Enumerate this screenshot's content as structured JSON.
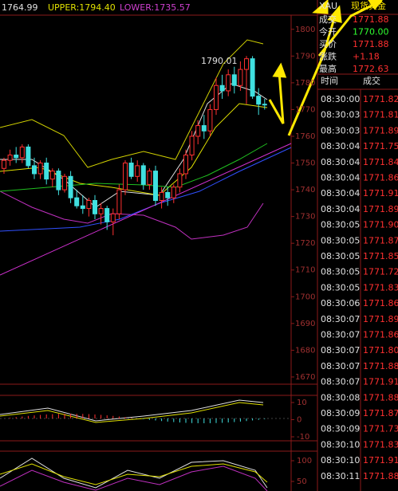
{
  "header": {
    "symbol": "XAU",
    "name": "现货黄金"
  },
  "indicator": {
    "mid": "1764.99",
    "upper": "UPPER:1794.40",
    "lower": "LOWER:1735.57"
  },
  "quote": [
    {
      "label": "成交",
      "value": "1771.88"
    },
    {
      "label": "今开",
      "value": "1770.00"
    },
    {
      "label": "买价",
      "value": "1771.88"
    },
    {
      "label": "涨跌",
      "value": "+1.18"
    },
    {
      "label": "最高",
      "value": "1772.63"
    }
  ],
  "trades": {
    "columns": [
      "时间",
      "成交"
    ],
    "rows": [
      [
        "08:30:00",
        "1771.82"
      ],
      [
        "08:30:03",
        "1771.81"
      ],
      [
        "08:30:03",
        "1771.89"
      ],
      [
        "08:30:04",
        "1771.75"
      ],
      [
        "08:30:04",
        "1771.84"
      ],
      [
        "08:30:04",
        "1771.86"
      ],
      [
        "08:30:04",
        "1771.91"
      ],
      [
        "08:30:04",
        "1771.89"
      ],
      [
        "08:30:05",
        "1771.90"
      ],
      [
        "08:30:05",
        "1771.87"
      ],
      [
        "08:30:05",
        "1771.85"
      ],
      [
        "08:30:05",
        "1771.72"
      ],
      [
        "08:30:05",
        "1771.83"
      ],
      [
        "08:30:06",
        "1771.86"
      ],
      [
        "08:30:07",
        "1771.89"
      ],
      [
        "08:30:07",
        "1771.86"
      ],
      [
        "08:30:07",
        "1771.80"
      ],
      [
        "08:30:07",
        "1771.88"
      ],
      [
        "08:30:07",
        "1771.91"
      ],
      [
        "08:30:08",
        "1771.88"
      ],
      [
        "08:30:09",
        "1771.87"
      ],
      [
        "08:30:09",
        "1771.73"
      ],
      [
        "08:30:10",
        "1771.83"
      ],
      [
        "08:30:10",
        "1771.91"
      ],
      [
        "08:30:11",
        "1771.88"
      ]
    ]
  },
  "chart_data": {
    "type": "candlestick",
    "annotation": "1790.01",
    "open": [
      1748,
      1751,
      1753,
      1752,
      1756,
      1749,
      1746,
      1750,
      1744,
      1747,
      1740,
      1745,
      1737,
      1734,
      1733,
      1736,
      1731,
      1733,
      1728,
      1731,
      1740,
      1750,
      1745,
      1749,
      1742,
      1747,
      1736,
      1739,
      1737,
      1741,
      1746,
      1753,
      1760,
      1764,
      1762,
      1770,
      1779,
      1777,
      1783,
      1779,
      1785,
      1789,
      1775,
      1772
    ],
    "high": [
      1752,
      1755,
      1756,
      1757,
      1757,
      1752,
      1751,
      1752,
      1748,
      1748,
      1746,
      1747,
      1740,
      1738,
      1737,
      1738,
      1735,
      1734,
      1733,
      1742,
      1751,
      1752,
      1751,
      1750,
      1748,
      1749,
      1741,
      1741,
      1742,
      1748,
      1755,
      1762,
      1766,
      1768,
      1772,
      1782,
      1783,
      1785,
      1786,
      1788,
      1790.01,
      1790,
      1778,
      1774
    ],
    "low": [
      1746,
      1749,
      1750,
      1750,
      1748,
      1744,
      1744,
      1742,
      1741,
      1738,
      1739,
      1735,
      1733,
      1731,
      1730,
      1729,
      1727,
      1725,
      1723,
      1729,
      1738,
      1744,
      1743,
      1740,
      1740,
      1734,
      1733,
      1734,
      1735,
      1739,
      1744,
      1751,
      1757,
      1759,
      1760,
      1768,
      1774,
      1775,
      1776,
      1777,
      1772,
      1774,
      1768,
      1770
    ],
    "close": [
      1751,
      1753,
      1752,
      1756,
      1749,
      1746,
      1750,
      1744,
      1747,
      1740,
      1745,
      1737,
      1734,
      1733,
      1736,
      1731,
      1733,
      1728,
      1731,
      1740,
      1750,
      1745,
      1749,
      1742,
      1747,
      1736,
      1739,
      1737,
      1741,
      1746,
      1753,
      1760,
      1764,
      1762,
      1770,
      1779,
      1777,
      1783,
      1779,
      1785,
      1789,
      1775,
      1772,
      1771.88
    ],
    "ylim": [
      1667.3,
      1805
    ],
    "yticks": [
      1800,
      1790,
      1780,
      1770,
      1760,
      1750,
      1740,
      1730,
      1720,
      1710,
      1700,
      1690,
      1680,
      1670
    ]
  },
  "macd": {
    "yticks": [
      10,
      0,
      -10
    ]
  },
  "kdj": {
    "yticks": [
      100,
      50
    ]
  }
}
